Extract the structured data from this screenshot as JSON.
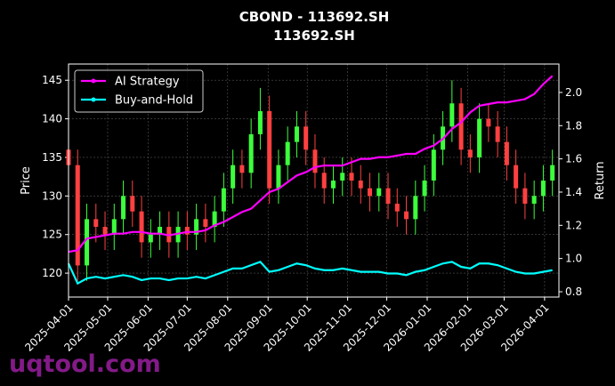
{
  "chart_data": {
    "type": "candlestick",
    "title": "CBOND - 113692.SH",
    "subtitle": "113692.SH",
    "ylabel": "Price",
    "y2label": "Return",
    "watermark": "uqtool.com",
    "grid": true,
    "legend": "upper left",
    "up_color": "#3cff3c",
    "down_color": "#ff4040",
    "xlim": [
      "2025-04-01",
      "2026-04-12"
    ],
    "xticks": [
      "2025-04-01",
      "2025-05-01",
      "2025-06-01",
      "2025-07-01",
      "2025-08-01",
      "2025-09-01",
      "2025-10-01",
      "2025-11-01",
      "2025-12-01",
      "2026-01-01",
      "2026-02-01",
      "2026-03-01",
      "2026-04-01"
    ],
    "ylim": [
      116.9,
      147.1
    ],
    "yticks": [
      120,
      125,
      130,
      135,
      140,
      145
    ],
    "y2lim": [
      0.768,
      2.171
    ],
    "y2ticks": [
      0.8,
      {
        "value": 1,
        "label": "1.0"
      },
      1.2,
      1.4,
      1.6,
      1.8,
      {
        "value": 2,
        "label": "2.0"
      }
    ],
    "x": [
      "2025-04-01",
      "2025-04-08",
      "2025-04-15",
      "2025-04-22",
      "2025-04-29",
      "2025-05-06",
      "2025-05-13",
      "2025-05-20",
      "2025-05-27",
      "2025-06-03",
      "2025-06-10",
      "2025-06-17",
      "2025-06-24",
      "2025-07-01",
      "2025-07-08",
      "2025-07-15",
      "2025-07-22",
      "2025-07-29",
      "2025-08-05",
      "2025-08-12",
      "2025-08-19",
      "2025-08-26",
      "2025-09-02",
      "2025-09-09",
      "2025-09-16",
      "2025-09-23",
      "2025-09-30",
      "2025-10-07",
      "2025-10-14",
      "2025-10-21",
      "2025-10-28",
      "2025-11-04",
      "2025-11-11",
      "2025-11-18",
      "2025-11-25",
      "2025-12-02",
      "2025-12-09",
      "2025-12-16",
      "2025-12-23",
      "2025-12-30",
      "2026-01-06",
      "2026-01-13",
      "2026-01-20",
      "2026-01-27",
      "2026-02-03",
      "2026-02-10",
      "2026-02-17",
      "2026-02-24",
      "2026-03-03",
      "2026-03-10",
      "2026-03-17",
      "2026-03-24",
      "2026-03-31",
      "2026-04-07"
    ],
    "open": [
      136,
      134,
      121,
      127,
      126,
      125,
      127,
      130,
      128,
      124,
      125,
      126,
      124,
      126,
      125,
      127,
      126,
      128,
      131,
      134,
      133,
      138,
      141,
      131,
      134,
      137,
      139,
      136,
      133,
      131,
      132,
      133,
      132,
      131,
      130,
      131,
      129,
      128,
      127,
      130,
      132,
      136,
      139,
      142,
      136,
      135,
      140,
      139,
      137,
      134,
      131,
      129,
      130,
      132
    ],
    "high": [
      138,
      136,
      129,
      129,
      128,
      129,
      132,
      132,
      130,
      127,
      128,
      128,
      128,
      128,
      129,
      129,
      130,
      133,
      136,
      136,
      140,
      144,
      143,
      136,
      139,
      141,
      141,
      138,
      135,
      134,
      135,
      135,
      134,
      133,
      133,
      133,
      131,
      130,
      132,
      134,
      138,
      141,
      145,
      144,
      138,
      142,
      142,
      141,
      139,
      136,
      133,
      132,
      134,
      136
    ],
    "low": [
      132,
      119,
      119,
      124,
      123,
      123,
      125,
      126,
      122,
      122,
      123,
      122,
      122,
      123,
      123,
      124,
      124,
      126,
      129,
      131,
      131,
      136,
      129,
      129,
      132,
      135,
      134,
      131,
      129,
      129,
      130,
      130,
      129,
      128,
      128,
      127,
      126,
      125,
      125,
      128,
      130,
      134,
      137,
      134,
      133,
      133,
      137,
      135,
      132,
      129,
      127,
      127,
      128,
      130
    ],
    "close": [
      134,
      121,
      127,
      126,
      125,
      127,
      130,
      128,
      124,
      125,
      126,
      124,
      126,
      125,
      127,
      126,
      128,
      131,
      134,
      133,
      138,
      141,
      131,
      134,
      137,
      139,
      136,
      133,
      131,
      132,
      133,
      132,
      131,
      130,
      131,
      129,
      128,
      127,
      130,
      132,
      136,
      139,
      142,
      136,
      135,
      140,
      139,
      137,
      134,
      131,
      129,
      130,
      132,
      134
    ],
    "series": [
      {
        "name": "AI Strategy",
        "color": "#ff00ff",
        "axis": "y2",
        "values": [
          1.04,
          1.05,
          1.12,
          1.13,
          1.14,
          1.15,
          1.15,
          1.16,
          1.16,
          1.15,
          1.15,
          1.14,
          1.15,
          1.16,
          1.16,
          1.17,
          1.2,
          1.22,
          1.25,
          1.28,
          1.3,
          1.35,
          1.4,
          1.42,
          1.46,
          1.5,
          1.52,
          1.55,
          1.56,
          1.56,
          1.56,
          1.58,
          1.6,
          1.6,
          1.61,
          1.61,
          1.62,
          1.63,
          1.63,
          1.66,
          1.68,
          1.72,
          1.78,
          1.82,
          1.88,
          1.92,
          1.93,
          1.94,
          1.94,
          1.95,
          1.96,
          1.99,
          2.05,
          2.1
        ]
      },
      {
        "name": "Buy-and-Hold",
        "color": "#00ffff",
        "axis": "y2",
        "values": [
          0.97,
          0.85,
          0.88,
          0.89,
          0.88,
          0.89,
          0.9,
          0.89,
          0.87,
          0.88,
          0.88,
          0.87,
          0.88,
          0.88,
          0.89,
          0.88,
          0.9,
          0.92,
          0.94,
          0.94,
          0.96,
          0.98,
          0.92,
          0.93,
          0.95,
          0.97,
          0.96,
          0.94,
          0.93,
          0.93,
          0.94,
          0.93,
          0.92,
          0.92,
          0.92,
          0.91,
          0.91,
          0.9,
          0.92,
          0.93,
          0.95,
          0.97,
          0.98,
          0.95,
          0.94,
          0.97,
          0.97,
          0.96,
          0.94,
          0.92,
          0.91,
          0.91,
          0.92,
          0.93
        ]
      }
    ]
  }
}
